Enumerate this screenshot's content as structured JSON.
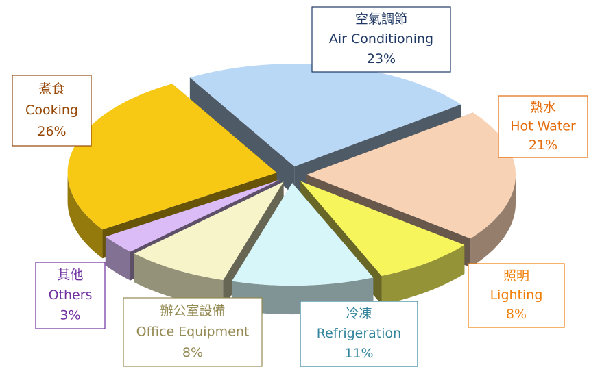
{
  "chart_data": {
    "type": "pie3d",
    "categories_zh": [
      "空氣調節",
      "熱水",
      "照明",
      "冷凍",
      "辦公室設備",
      "其他",
      "煮食"
    ],
    "categories": [
      "Air Conditioning",
      "Hot Water",
      "Lighting",
      "Refrigeration",
      "Office Equipment",
      "Others",
      "Cooking"
    ],
    "values": [
      23,
      21,
      8,
      11,
      8,
      3,
      26
    ],
    "value_labels": [
      "23%",
      "21%",
      "8%",
      "11%",
      "8%",
      "3%",
      "26%"
    ],
    "colors": [
      "#b9d8f6",
      "#f8d2b4",
      "#f7f55c",
      "#d6f6f9",
      "#f6f4c8",
      "#dbbcf6",
      "#f7c914"
    ],
    "label_colors": [
      "#1f3864",
      "#e46c0a",
      "#f07f09",
      "#31849b",
      "#948a54",
      "#7030a0",
      "#974706"
    ]
  }
}
